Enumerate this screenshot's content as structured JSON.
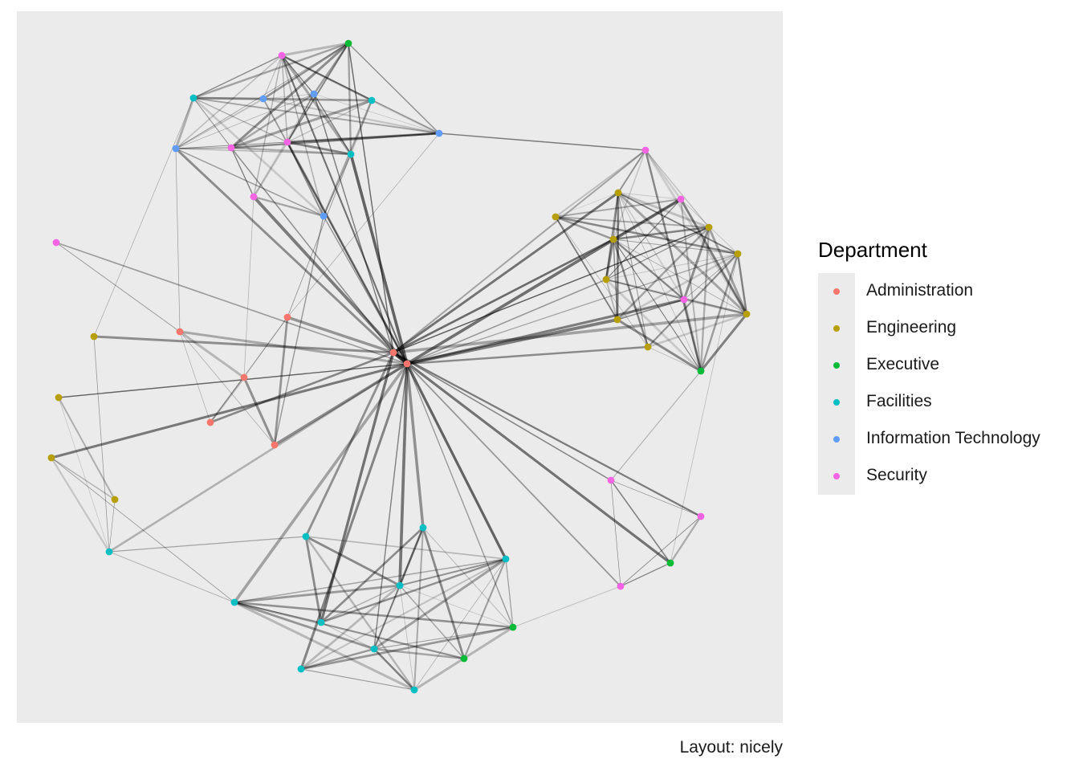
{
  "legend": {
    "title": "Department",
    "items": [
      {
        "label": "Administration",
        "color": "#F8766D"
      },
      {
        "label": "Engineering",
        "color": "#B79F00"
      },
      {
        "label": "Executive",
        "color": "#00BA38"
      },
      {
        "label": "Facilities",
        "color": "#00BFC4"
      },
      {
        "label": "Information Technology",
        "color": "#619CFF"
      },
      {
        "label": "Security",
        "color": "#F564E3"
      }
    ]
  },
  "caption": "Layout: nicely",
  "colors": {
    "panel_background": "#ebebeb",
    "edge": "#000000"
  }
}
